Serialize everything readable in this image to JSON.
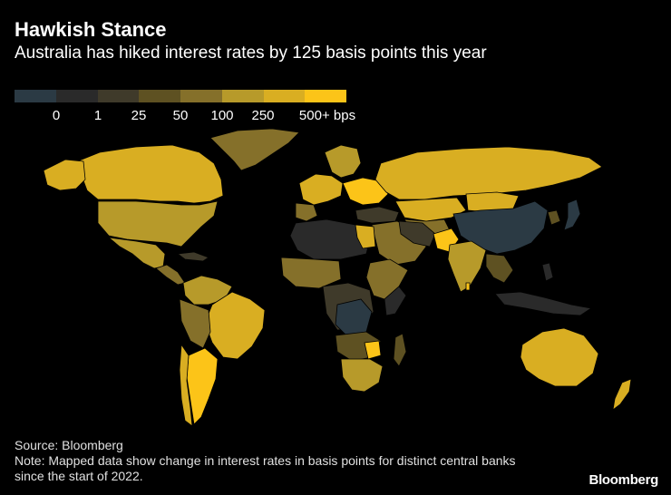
{
  "title": "Hawkish Stance",
  "subtitle": "Australia has hiked interest rates by 125 basis points this year",
  "legend": {
    "colors": [
      "#2b3a44",
      "#2a2a2a",
      "#3f3a2a",
      "#5e5122",
      "#85702a",
      "#b79a2a",
      "#d9ae22",
      "#fcc418"
    ],
    "labels": [
      "0",
      "1",
      "25",
      "50",
      "100",
      "250",
      "500+ bps"
    ]
  },
  "colors": {
    "background": "#000000",
    "no_data": "#1b1b1b",
    "border": "#000000"
  },
  "source": "Source: Bloomberg",
  "note": "Note: Mapped data show change in interest rates in basis points for distinct central banks since the start of 2022.",
  "brand": "Bloomberg"
}
